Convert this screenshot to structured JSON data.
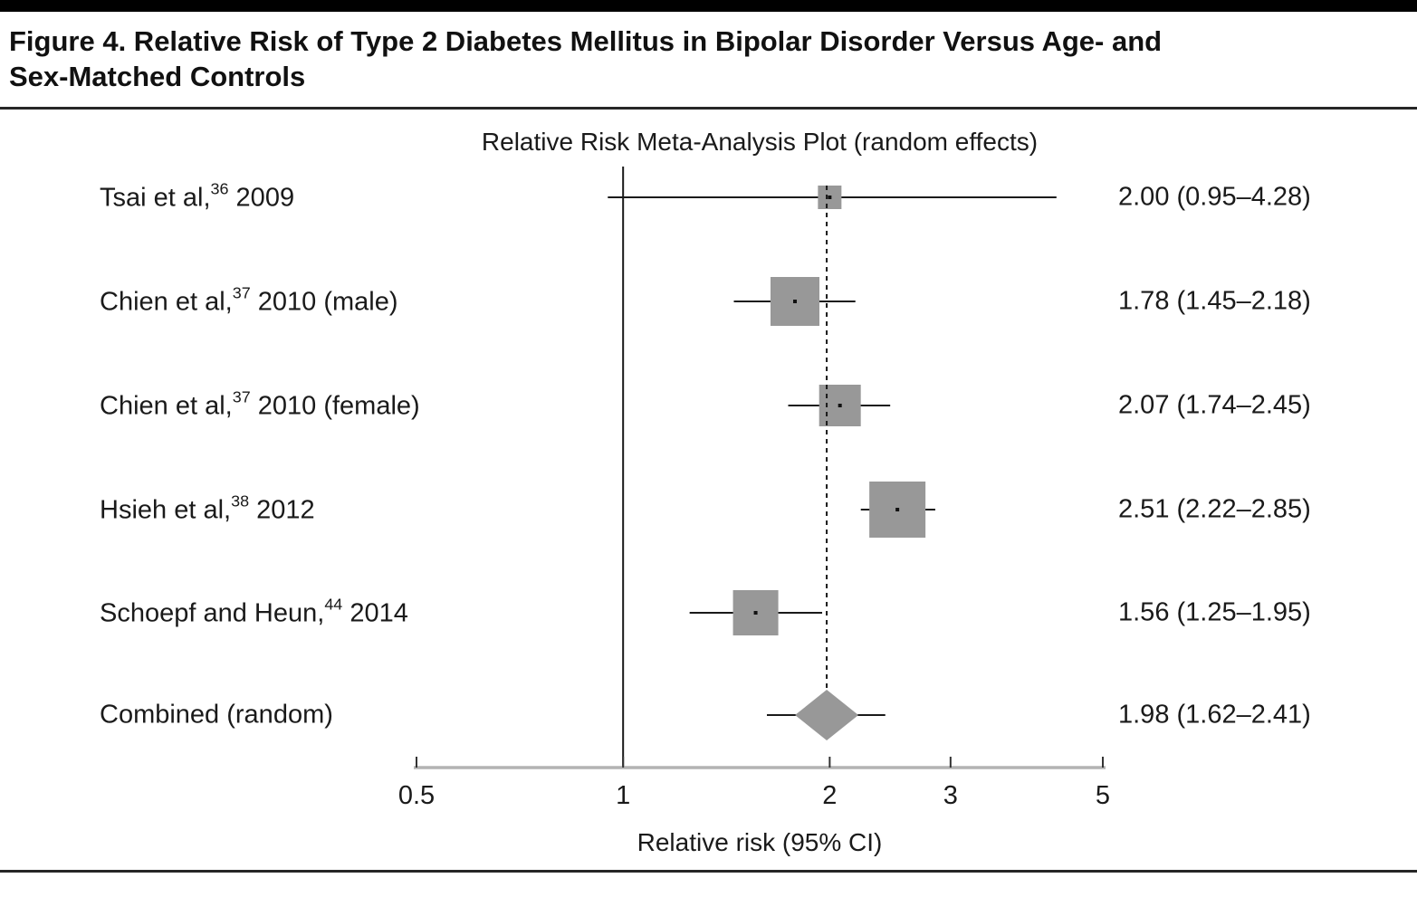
{
  "figure": {
    "title_line1": "Figure 4. Relative Risk of Type 2 Diabetes Mellitus in Bipolar Disorder Versus Age- and",
    "title_line2": "Sex-Matched Controls"
  },
  "chart_data": {
    "type": "forest",
    "title": "Relative Risk Meta-Analysis Plot (random effects)",
    "xlabel": "Relative risk (95% CI)",
    "x_scale": "log",
    "xlim": [
      0.5,
      5
    ],
    "x_ticks": [
      {
        "value": 0.5,
        "label": "0.5"
      },
      {
        "value": 1,
        "label": "1"
      },
      {
        "value": 2,
        "label": "2"
      },
      {
        "value": 3,
        "label": "3"
      },
      {
        "value": 5,
        "label": "5"
      }
    ],
    "reference_line_x": 1,
    "pooled_line_x": 1.98,
    "rows": [
      {
        "label_pre": "Tsai et al,",
        "label_sup": "36",
        "label_post": " 2009",
        "rr": 2.0,
        "ci_lo": 0.95,
        "ci_hi": 4.28,
        "estimate_text": "2.00 (0.95–4.28)",
        "marker": "square",
        "box_size": 26
      },
      {
        "label_pre": "Chien et al,",
        "label_sup": "37",
        "label_post": " 2010 (male)",
        "rr": 1.78,
        "ci_lo": 1.45,
        "ci_hi": 2.18,
        "estimate_text": "1.78 (1.45–2.18)",
        "marker": "square",
        "box_size": 54
      },
      {
        "label_pre": "Chien et al,",
        "label_sup": "37",
        "label_post": " 2010 (female)",
        "rr": 2.07,
        "ci_lo": 1.74,
        "ci_hi": 2.45,
        "estimate_text": "2.07 (1.74–2.45)",
        "marker": "square",
        "box_size": 46
      },
      {
        "label_pre": "Hsieh et al,",
        "label_sup": "38",
        "label_post": " 2012",
        "rr": 2.51,
        "ci_lo": 2.22,
        "ci_hi": 2.85,
        "estimate_text": "2.51 (2.22–2.85)",
        "marker": "square",
        "box_size": 62
      },
      {
        "label_pre": "Schoepf and Heun,",
        "label_sup": "44",
        "label_post": " 2014",
        "rr": 1.56,
        "ci_lo": 1.25,
        "ci_hi": 1.95,
        "estimate_text": "1.56 (1.25–1.95)",
        "marker": "square",
        "box_size": 50
      },
      {
        "label_pre": "Combined (random)",
        "label_sup": "",
        "label_post": "",
        "rr": 1.98,
        "ci_lo": 1.62,
        "ci_hi": 2.41,
        "estimate_text": "1.98 (1.62–2.41)",
        "marker": "diamond",
        "box_size": 56
      }
    ],
    "colors": {
      "box_fill": "#989898",
      "line": "#1a1a1a",
      "axis": "#b3b3b3",
      "tick": "#333333"
    }
  }
}
